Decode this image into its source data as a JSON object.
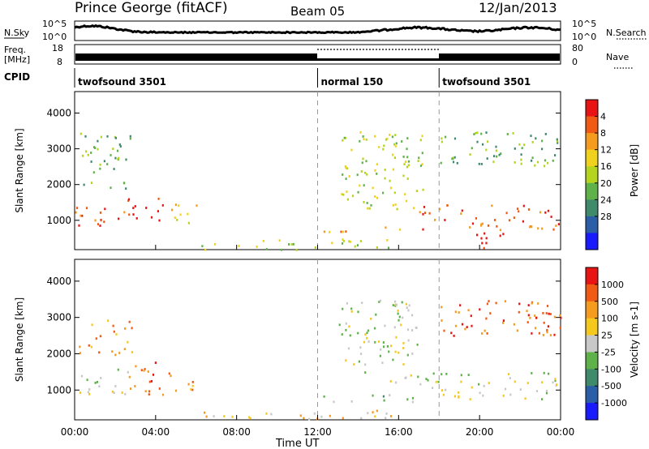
{
  "header": {
    "station": "Prince George (fitACF)",
    "beam": "Beam 05",
    "date": "12/Jan/2013"
  },
  "top_panels": {
    "nsky_label": "N.Sky",
    "nsky_ticks": [
      "10^5",
      "10^0"
    ],
    "nsearch_label": "N.Search",
    "nsearch_ticks": [
      "10^5",
      "10^0"
    ],
    "freq_label": "Freq.",
    "freq_unit": "[MHz]",
    "freq_ticks": [
      "18",
      "8"
    ],
    "nave_label": "Nave",
    "nave_ticks": [
      "80",
      "0"
    ],
    "cpid_label": "CPID",
    "cpid_segments": [
      {
        "start_hour": 0,
        "label": "twofsound 3501"
      },
      {
        "start_hour": 12,
        "label": "normal 150"
      },
      {
        "start_hour": 18,
        "label": "twofsound 3501"
      }
    ]
  },
  "chart_data": [
    {
      "type": "heatmap",
      "name_printed": "",
      "xlabel": "Time UT",
      "ylabel": "Slant Range [km]",
      "xlim_hours": [
        0,
        24
      ],
      "x_tick_labels": [
        "00:00",
        "04:00",
        "08:00",
        "12:00",
        "16:00",
        "20:00",
        "00:00"
      ],
      "ylim_km": [
        180,
        4600
      ],
      "y_tick_labels": [
        "1000",
        "2000",
        "3000",
        "4000"
      ],
      "colorbar": {
        "label": "Power [dB]",
        "ticks": [
          "4",
          "8",
          "12",
          "16",
          "20",
          "24",
          "28"
        ],
        "colors": [
          "#1a1aff",
          "#2a5fa8",
          "#3f8a6a",
          "#5fb24a",
          "#b4d41e",
          "#f0d21e",
          "#f59b1e",
          "#f05a14",
          "#e81414"
        ]
      },
      "markers_hours": [
        12,
        18
      ],
      "regions": [
        {
          "t": [
            0.0,
            2.6
          ],
          "r": [
            800,
            1400
          ],
          "level": 7
        },
        {
          "t": [
            2.6,
            4.5
          ],
          "r": [
            950,
            1700
          ],
          "level": 8
        },
        {
          "t": [
            4.6,
            6.0
          ],
          "r": [
            950,
            1500
          ],
          "level": 5
        },
        {
          "t": [
            0.2,
            2.8
          ],
          "r": [
            1900,
            3500
          ],
          "level": 3
        },
        {
          "t": [
            12.0,
            16.5
          ],
          "r": [
            700,
            850
          ],
          "level": 6
        },
        {
          "t": [
            13.0,
            17.3
          ],
          "r": [
            1300,
            3500
          ],
          "level": 4
        },
        {
          "t": [
            17.0,
            24.0
          ],
          "r": [
            750,
            1450
          ],
          "level": 7
        },
        {
          "t": [
            19.6,
            21.3
          ],
          "r": [
            250,
            750
          ],
          "level": 8
        },
        {
          "t": [
            18.0,
            24.0
          ],
          "r": [
            2500,
            3500
          ],
          "level": 3
        },
        {
          "t": [
            6.0,
            16.0
          ],
          "r": [
            200,
            500
          ],
          "level": 4
        }
      ]
    },
    {
      "type": "heatmap",
      "name_printed": "",
      "xlabel": "Time UT",
      "ylabel": "Slant Range [km]",
      "xlim_hours": [
        0,
        24
      ],
      "x_tick_labels": [
        "00:00",
        "04:00",
        "08:00",
        "12:00",
        "16:00",
        "20:00",
        "00:00"
      ],
      "ylim_km": [
        180,
        4600
      ],
      "y_tick_labels": [
        "1000",
        "2000",
        "3000",
        "4000"
      ],
      "colorbar": {
        "label": "Velocity [m s-1]",
        "ticks": [
          "1000",
          "500",
          "100",
          "25",
          "-25",
          "-100",
          "-500",
          "-1000"
        ],
        "colors": [
          "#1a1aff",
          "#2a5fa8",
          "#3f8a6a",
          "#5fb24a",
          "#c8c8c8",
          "#f5c81e",
          "#f59b1e",
          "#f05a14",
          "#e81414"
        ]
      },
      "markers_hours": [
        12,
        18
      ],
      "regions": [
        {
          "t": [
            0.0,
            2.6
          ],
          "r": [
            900,
            1600
          ],
          "level": 4
        },
        {
          "t": [
            2.5,
            4.4
          ],
          "r": [
            900,
            1800
          ],
          "level": 7
        },
        {
          "t": [
            4.6,
            6.0
          ],
          "r": [
            950,
            1500
          ],
          "level": 6
        },
        {
          "t": [
            0.2,
            2.8
          ],
          "r": [
            2000,
            3000
          ],
          "level": 6
        },
        {
          "t": [
            12.0,
            17.0
          ],
          "r": [
            700,
            900
          ],
          "level": 3
        },
        {
          "t": [
            13.0,
            17.0
          ],
          "r": [
            1200,
            3500
          ],
          "level": 4
        },
        {
          "t": [
            17.0,
            24.0
          ],
          "r": [
            750,
            1500
          ],
          "level": 4
        },
        {
          "t": [
            18.0,
            24.0
          ],
          "r": [
            2500,
            3500
          ],
          "level": 7
        },
        {
          "t": [
            6.0,
            16.0
          ],
          "r": [
            200,
            500
          ],
          "level": 5
        }
      ]
    }
  ]
}
